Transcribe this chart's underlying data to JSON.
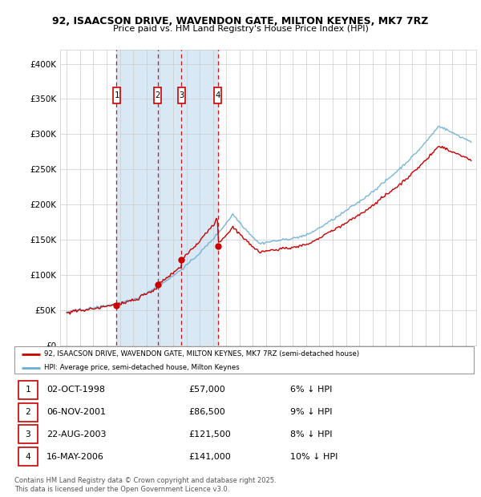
{
  "title1": "92, ISAACSON DRIVE, WAVENDON GATE, MILTON KEYNES, MK7 7RZ",
  "title2": "Price paid vs. HM Land Registry's House Price Index (HPI)",
  "legend_line1": "92, ISAACSON DRIVE, WAVENDON GATE, MILTON KEYNES, MK7 7RZ (semi-detached house)",
  "legend_line2": "HPI: Average price, semi-detached house, Milton Keynes",
  "footer1": "Contains HM Land Registry data © Crown copyright and database right 2025.",
  "footer2": "This data is licensed under the Open Government Licence v3.0.",
  "purchases": [
    {
      "num": 1,
      "date": "02-OCT-1998",
      "price": 57000,
      "pct": "6%",
      "dir": "↓",
      "year": 1998.75
    },
    {
      "num": 2,
      "date": "06-NOV-2001",
      "price": 86500,
      "pct": "9%",
      "dir": "↓",
      "year": 2001.83
    },
    {
      "num": 3,
      "date": "22-AUG-2003",
      "price": 121500,
      "pct": "8%",
      "dir": "↓",
      "year": 2003.63
    },
    {
      "num": 4,
      "date": "16-MAY-2006",
      "price": 141000,
      "pct": "10%",
      "dir": "↓",
      "year": 2006.37
    }
  ],
  "hpi_color": "#6baed6",
  "price_color": "#cc0000",
  "shade_color": "#d8e8f5",
  "grid_color": "#cccccc",
  "ylim": [
    0,
    420000
  ],
  "yticks": [
    0,
    50000,
    100000,
    150000,
    200000,
    250000,
    300000,
    350000,
    400000
  ],
  "xlim_start": 1994.5,
  "xlim_end": 2025.8
}
